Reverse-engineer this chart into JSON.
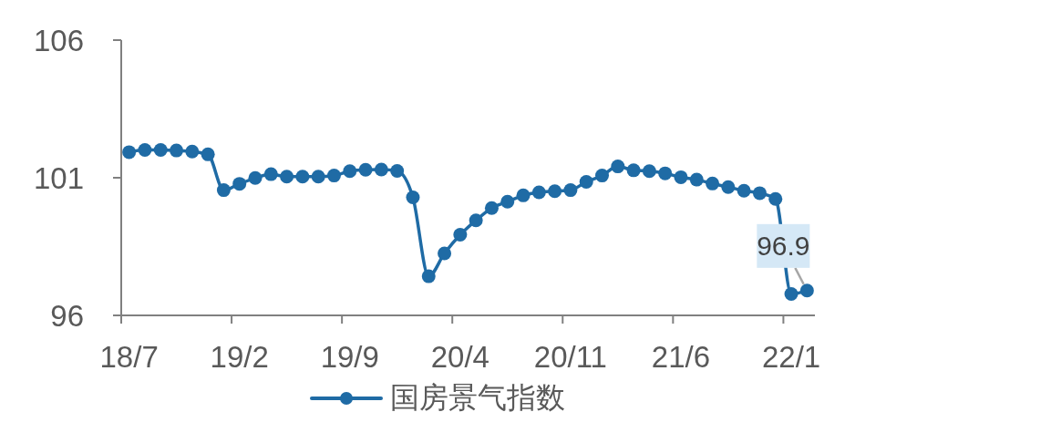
{
  "chart_data": {
    "type": "line",
    "categories": [
      "18/7",
      null,
      null,
      null,
      null,
      null,
      null,
      "19/2",
      null,
      null,
      null,
      null,
      null,
      null,
      "19/9",
      null,
      null,
      null,
      null,
      null,
      null,
      "20/4",
      null,
      null,
      null,
      null,
      null,
      null,
      "20/11",
      null,
      null,
      null,
      null,
      null,
      null,
      "21/6",
      null,
      null,
      null,
      null,
      null,
      null,
      "22/1",
      null
    ],
    "series": [
      {
        "name": "国房景气指数",
        "color": "#1f6ba5",
        "values": [
          101.93,
          102.01,
          102.01,
          101.99,
          101.95,
          101.85,
          100.55,
          100.78,
          100.99,
          101.13,
          101.04,
          101.04,
          101.04,
          101.08,
          101.24,
          101.29,
          101.3,
          101.25,
          100.29,
          97.42,
          98.25,
          98.93,
          99.45,
          99.9,
          100.13,
          100.36,
          100.47,
          100.51,
          100.55,
          100.85,
          101.08,
          101.41,
          101.27,
          101.24,
          101.16,
          101.02,
          100.93,
          100.79,
          100.66,
          100.53,
          100.44,
          100.23,
          96.78,
          96.9
        ],
        "value_labels": [
          null,
          null,
          null,
          null,
          null,
          null,
          null,
          null,
          null,
          null,
          null,
          null,
          null,
          null,
          null,
          null,
          null,
          null,
          null,
          null,
          null,
          null,
          null,
          null,
          null,
          null,
          null,
          null,
          null,
          null,
          null,
          null,
          null,
          null,
          null,
          null,
          null,
          null,
          null,
          null,
          null,
          null,
          null,
          "96.9"
        ]
      }
    ],
    "ylim": [
      96,
      106
    ],
    "yticks": [
      96,
      101,
      106
    ],
    "legend": "bottom",
    "marker": "circle",
    "line_style": "solid"
  }
}
